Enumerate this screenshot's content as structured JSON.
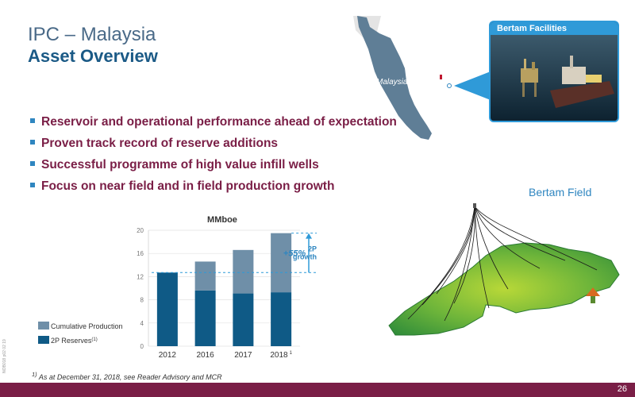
{
  "header": {
    "title": "IPC – Malaysia",
    "subtitle": "Asset Overview"
  },
  "bullets": [
    "Reservoir and operational performance ahead of expectation",
    "Proven track record of reserve additions",
    "Successful programme of high value infill wells",
    "Focus on near field and in field production growth"
  ],
  "map": {
    "label": "Malaysia"
  },
  "photo": {
    "title": "Bertam Facilities"
  },
  "field": {
    "title": "Bertam Field"
  },
  "colors": {
    "accent": "#7a1e46",
    "blue": "#2f86c0",
    "dark_bar": "#0f5a86",
    "light_bar": "#6f8fa8"
  },
  "chart_data": {
    "type": "bar",
    "title": "MMboe",
    "categories": [
      "2012",
      "2016",
      "2017",
      "2018"
    ],
    "category_superscripts": [
      "",
      "",
      "",
      "1"
    ],
    "stacked": true,
    "series": [
      {
        "name": "2P Reserves",
        "name_superscript": "(1)",
        "values": [
          12.7,
          9.6,
          9.1,
          9.3
        ]
      },
      {
        "name": "Cumulative Production",
        "values": [
          0,
          5.0,
          7.5,
          10.2
        ]
      }
    ],
    "ylim": [
      0,
      20
    ],
    "yticks": [
      "0",
      "4",
      "8",
      "12",
      "16",
      "20"
    ],
    "annotation": {
      "value": "+55%",
      "label": "2P growth"
    }
  },
  "footnote": {
    "marker": "1)",
    "text": "As at December 31, 2018, see Reader Advisory and MCR"
  },
  "side_code": "NOB018 p02 02 19",
  "page_number": "26"
}
